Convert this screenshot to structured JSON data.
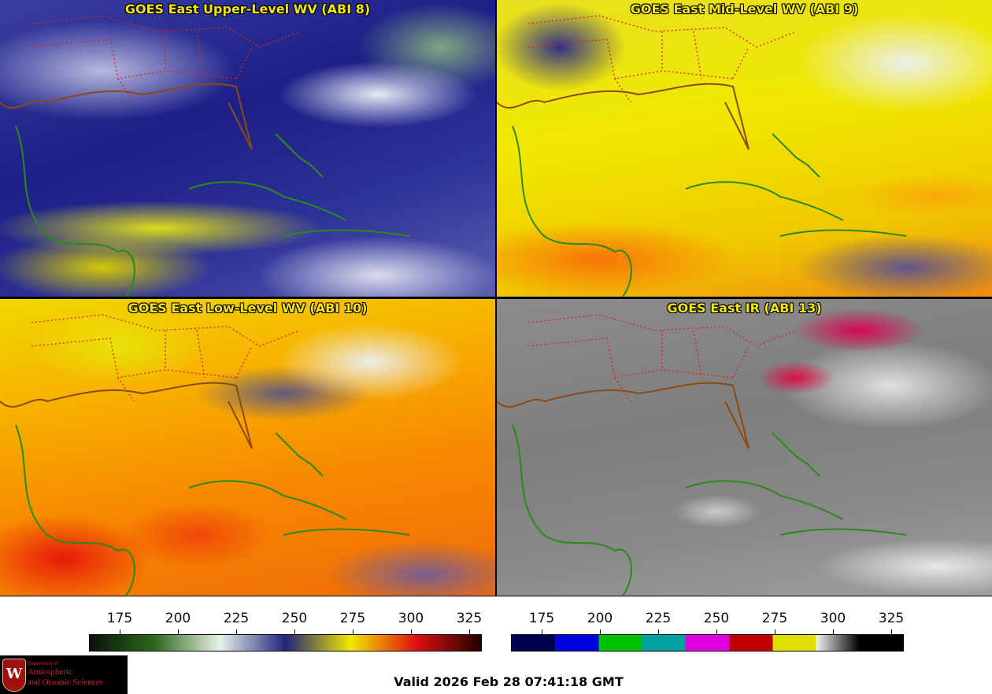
{
  "panels": [
    {
      "title": "GOES East Upper-Level WV (ABI 8)"
    },
    {
      "title": "GOES East Mid-Level WV (ABI 9)"
    },
    {
      "title": "GOES East Low-Level WV (ABI 10)"
    },
    {
      "title": "GOES East IR (ABI 13)"
    }
  ],
  "colorbar_wv": {
    "ticks": [
      "175",
      "200",
      "225",
      "250",
      "275",
      "300",
      "325"
    ],
    "colors": [
      "#0a120a",
      "#2e6a1e",
      "#e8f0e8",
      "#20247a",
      "#f0e800",
      "#e01010",
      "#200000"
    ]
  },
  "colorbar_ir": {
    "ticks": [
      "175",
      "200",
      "225",
      "250",
      "275",
      "300",
      "325"
    ],
    "colors": [
      "#000050",
      "#0000e0",
      "#00c000",
      "#00a0a0",
      "#e000e0",
      "#c00000",
      "#e0e000",
      "#f0f0f0",
      "#000000"
    ]
  },
  "logo": {
    "dept": "Department of",
    "line1": "Atmospheric",
    "line2": "and Oceanic Sciences",
    "crest_letter": "W"
  },
  "footer": {
    "valid": "Valid 2026 Feb 28 07:41:18 GMT"
  }
}
